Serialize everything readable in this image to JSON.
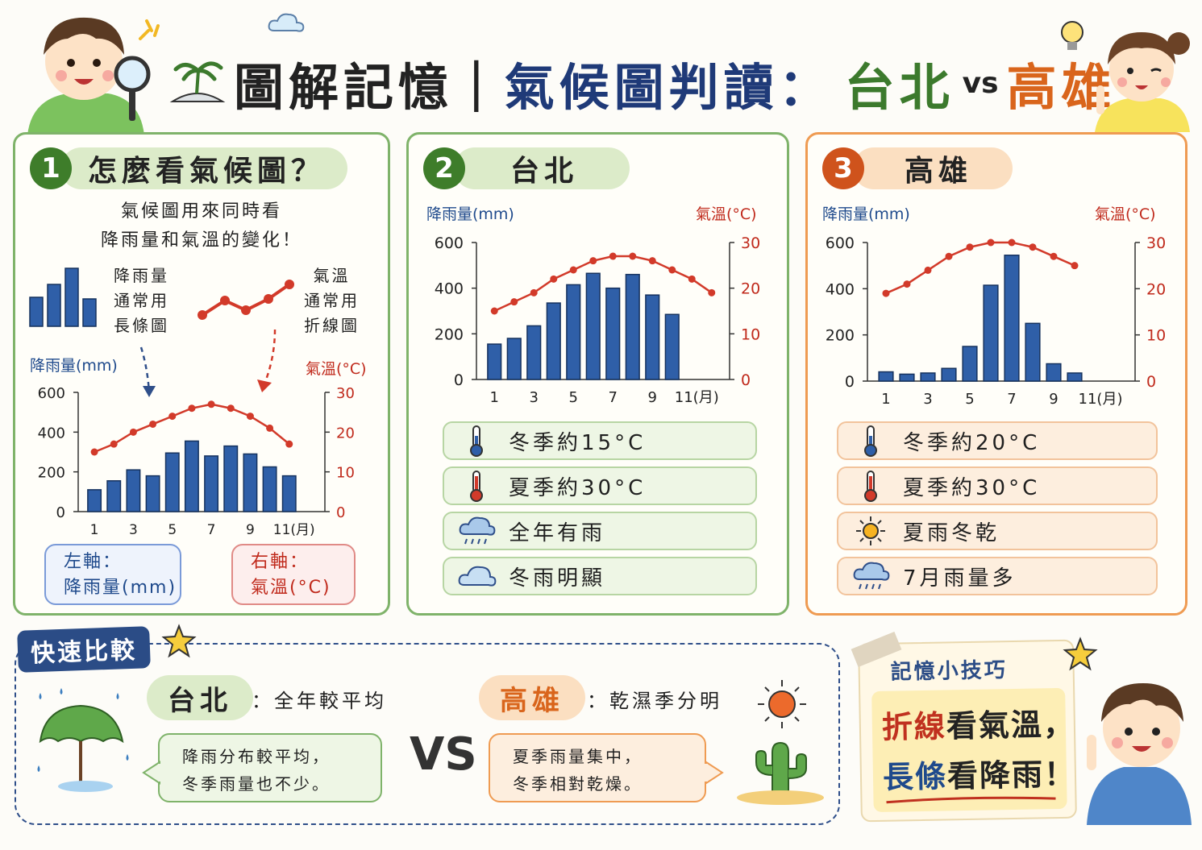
{
  "header": {
    "title_main": "圖解記憶",
    "title_sep": "|",
    "title_topic": "氣候圖判讀：",
    "title_city_a": "台北",
    "title_vs": "vs",
    "title_city_b": "高雄"
  },
  "panel1": {
    "step_number": "1",
    "heading": "怎麼看氣候圖？",
    "intro_line1": "氣候圖用來同時看",
    "intro_line2": "降雨量和氣溫的變化！",
    "bar_legend": [
      "降雨量",
      "通常用",
      "長條圖"
    ],
    "line_legend": [
      "氣溫",
      "通常用",
      "折線圖"
    ],
    "left_axis_title": "降雨量(mm)",
    "right_axis_title": "氣溫(°C)",
    "left_axis_box_line1": "左軸：",
    "left_axis_box_line2": "降雨量(mm)",
    "right_axis_box_line1": "右軸：",
    "right_axis_box_line2": "氣溫(°C)"
  },
  "panel2": {
    "step_number": "2",
    "heading": "台北",
    "left_axis_title": "降雨量(mm)",
    "right_axis_title": "氣溫(°C)",
    "features": [
      {
        "icon": "thermometer-blue-icon",
        "text": "冬季約15°C"
      },
      {
        "icon": "thermometer-red-icon",
        "text": "夏季約30°C"
      },
      {
        "icon": "rain-cloud-icon",
        "text": "全年有雨"
      },
      {
        "icon": "cloud-icon",
        "text": "冬雨明顯"
      }
    ]
  },
  "panel3": {
    "step_number": "3",
    "heading": "高雄",
    "left_axis_title": "降雨量(mm)",
    "right_axis_title": "氣溫(°C)",
    "features": [
      {
        "icon": "thermometer-blue-icon",
        "text": "冬季約20°C"
      },
      {
        "icon": "thermometer-red-icon",
        "text": "夏季約30°C"
      },
      {
        "icon": "sun-icon",
        "text": "夏雨冬乾"
      },
      {
        "icon": "rain-cloud-icon",
        "text": "7月雨量多"
      }
    ]
  },
  "compare": {
    "badge": "快速比較",
    "taipei_label": "台北",
    "taipei_desc": "：全年較平均",
    "taipei_bubble_line1": "降雨分布較平均，",
    "taipei_bubble_line2": "冬季雨量也不少。",
    "vs": "VS",
    "kh_label": "高雄",
    "kh_desc": "：乾濕季分明",
    "kh_bubble_line1": "夏季雨量集中，",
    "kh_bubble_line2": "冬季相對乾燥。"
  },
  "tip": {
    "title": "記憶小技巧",
    "line1_accent": "折線",
    "line1_rest": "看氣溫，",
    "line2_accent": "長條",
    "line2_rest": "看降雨！"
  },
  "colors": {
    "bar": "#2f5fa8",
    "line": "#d23a2a",
    "green_border": "#7fb36a",
    "orange_border": "#ef9b52",
    "navy": "#2b4c86"
  },
  "chart_data": [
    {
      "type": "bar",
      "id": "example",
      "x": [
        1,
        2,
        3,
        4,
        5,
        6,
        7,
        8,
        9,
        10,
        11,
        12
      ],
      "x_ticks": [
        "1",
        "3",
        "5",
        "7",
        "9",
        "11(月)"
      ],
      "series": [
        {
          "name": "降雨量",
          "axis": "left",
          "kind": "bar",
          "values": [
            110,
            155,
            210,
            180,
            295,
            355,
            280,
            330,
            290,
            225,
            180,
            0
          ]
        },
        {
          "name": "氣溫",
          "axis": "right",
          "kind": "line",
          "values": [
            15,
            17,
            20,
            22,
            24,
            26,
            27,
            26,
            24,
            21,
            17,
            null
          ]
        }
      ],
      "left_ylim": [
        0,
        600
      ],
      "left_ticks": [
        0,
        200,
        400,
        600
      ],
      "right_ylim": [
        0,
        30
      ],
      "right_ticks": [
        0,
        10,
        20,
        30
      ],
      "ylabel_left": "降雨量(mm)",
      "ylabel_right": "氣溫(°C)"
    },
    {
      "type": "bar",
      "id": "taipei",
      "x": [
        1,
        2,
        3,
        4,
        5,
        6,
        7,
        8,
        9,
        10,
        11,
        12
      ],
      "x_ticks": [
        "1",
        "3",
        "5",
        "7",
        "9",
        "11(月)"
      ],
      "series": [
        {
          "name": "降雨量",
          "axis": "left",
          "kind": "bar",
          "values": [
            155,
            180,
            235,
            335,
            415,
            465,
            400,
            460,
            370,
            285,
            0,
            0
          ]
        },
        {
          "name": "氣溫",
          "axis": "right",
          "kind": "line",
          "values": [
            15,
            17,
            19,
            22,
            24,
            26,
            27,
            27,
            26,
            24,
            22,
            19
          ]
        }
      ],
      "left_ylim": [
        0,
        600
      ],
      "left_ticks": [
        0,
        200,
        400,
        600
      ],
      "right_ylim": [
        0,
        30
      ],
      "right_ticks": [
        0,
        10,
        20,
        30
      ],
      "ylabel_left": "降雨量(mm)",
      "ylabel_right": "氣溫(°C)"
    },
    {
      "type": "bar",
      "id": "kaohsiung",
      "x": [
        1,
        2,
        3,
        4,
        5,
        6,
        7,
        8,
        9,
        10,
        11,
        12
      ],
      "x_ticks": [
        "1",
        "3",
        "5",
        "7",
        "9",
        "11(月)"
      ],
      "series": [
        {
          "name": "降雨量",
          "axis": "left",
          "kind": "bar",
          "values": [
            40,
            30,
            35,
            55,
            150,
            415,
            545,
            250,
            75,
            35,
            0,
            0
          ]
        },
        {
          "name": "氣溫",
          "axis": "right",
          "kind": "line",
          "values": [
            19,
            21,
            24,
            27,
            29,
            30,
            30,
            29,
            27,
            25,
            null,
            null
          ]
        }
      ],
      "left_ylim": [
        0,
        600
      ],
      "left_ticks": [
        0,
        200,
        400,
        600
      ],
      "right_ylim": [
        0,
        30
      ],
      "right_ticks": [
        0,
        10,
        20,
        30
      ],
      "ylabel_left": "降雨量(mm)",
      "ylabel_right": "氣溫(°C)"
    }
  ]
}
